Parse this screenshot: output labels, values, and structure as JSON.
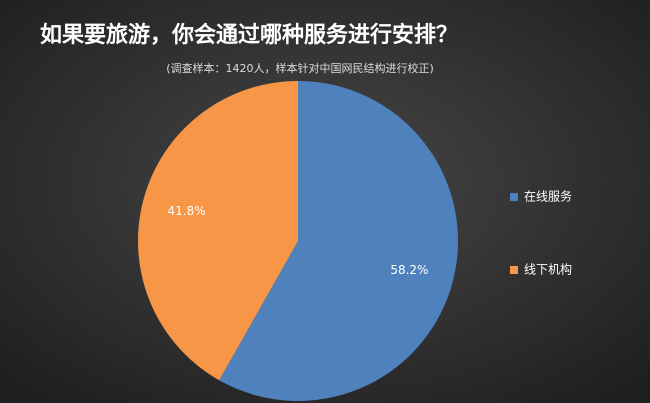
{
  "chart_data": {
    "type": "pie",
    "title": "如果要旅游，你会通过哪种服务进行安排？",
    "subtitle": "(调查样本：1420人，样本针对中国网民结构进行校正)",
    "categories": [
      "在线服务",
      "线下机构"
    ],
    "values": [
      58.2,
      41.8
    ],
    "value_labels": [
      "58.2%",
      "41.8%"
    ],
    "colors": [
      "#4f81bd",
      "#f79646"
    ],
    "legend": "right"
  }
}
